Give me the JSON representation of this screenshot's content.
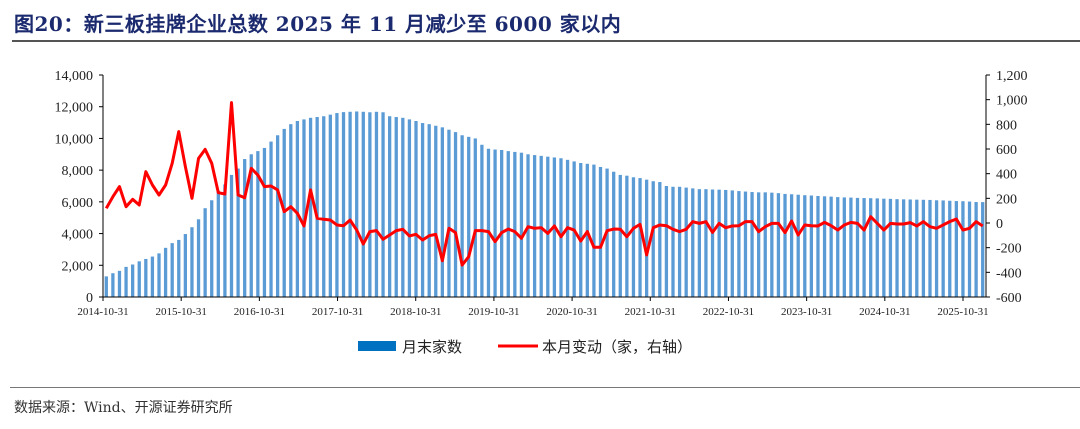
{
  "title": "图20：新三板挂牌企业总数 2025 年 11 月减少至 6000 家以内",
  "source": "数据来源：Wind、开源证券研究所",
  "chart_data": {
    "type": "bar+line",
    "title": "图20：新三板挂牌企业总数 2025 年 11 月减少至 6000 家以内",
    "start_month": "2014-10",
    "frequency": "monthly",
    "x_tick_labels": [
      "2014-10-31",
      "2015-10-31",
      "2016-10-31",
      "2017-10-31",
      "2018-10-31",
      "2019-10-31",
      "2020-10-31",
      "2021-10-31",
      "2022-10-31",
      "2023-10-31",
      "2024-10-31",
      "2025-10-31"
    ],
    "left_axis": {
      "ylim": [
        0,
        14000
      ],
      "ticks": [
        "0",
        "2,000",
        "4,000",
        "6,000",
        "8,000",
        "10,000",
        "12,000",
        "14,000"
      ]
    },
    "right_axis": {
      "ylim": [
        -600,
        1200
      ],
      "ticks": [
        "-600",
        "-400",
        "-200",
        "0",
        "200",
        "400",
        "600",
        "800",
        "1,000",
        "1,200"
      ]
    },
    "legend": {
      "placement": "bottom-center"
    },
    "colors": {
      "bar": "#5b9bd5",
      "legend_bar": "#0070c0",
      "line": "#ff0000"
    },
    "series": [
      {
        "name": "月末家数",
        "type": "bar",
        "axis": "left",
        "values": [
          1300,
          1500,
          1650,
          1900,
          2050,
          2250,
          2400,
          2550,
          2750,
          3100,
          3400,
          3600,
          3970,
          4400,
          4900,
          5600,
          6100,
          6700,
          7100,
          7700,
          8100,
          8700,
          9000,
          9200,
          9400,
          9800,
          10200,
          10600,
          10900,
          11100,
          11200,
          11300,
          11350,
          11400,
          11500,
          11600,
          11660,
          11680,
          11700,
          11680,
          11650,
          11680,
          11650,
          11400,
          11350,
          11300,
          11200,
          11100,
          10970,
          10900,
          10800,
          10700,
          10550,
          10400,
          10200,
          10100,
          10000,
          9600,
          9350,
          9300,
          9270,
          9200,
          9150,
          9100,
          9000,
          8950,
          8900,
          8850,
          8800,
          8750,
          8650,
          8550,
          8450,
          8400,
          8350,
          8200,
          8100,
          7900,
          7700,
          7650,
          7550,
          7500,
          7400,
          7300,
          7250,
          7000,
          6950,
          6950,
          6900,
          6850,
          6800,
          6800,
          6780,
          6770,
          6750,
          6720,
          6680,
          6650,
          6620,
          6600,
          6600,
          6580,
          6550,
          6500,
          6480,
          6450,
          6420,
          6400,
          6370,
          6350,
          6330,
          6300,
          6280,
          6270,
          6250,
          6240,
          6230,
          6220,
          6200,
          6190,
          6170,
          6160,
          6150,
          6140,
          6130,
          6120,
          6100,
          6090,
          6070,
          6050,
          6040,
          6020,
          5990,
          5985
        ]
      },
      {
        "name": "本月变动（家，右轴）",
        "type": "line",
        "axis": "right",
        "values": [
          119,
          213,
          295,
          132,
          192,
          146,
          416,
          308,
          227,
          308,
          484,
          741,
          457,
          200,
          524,
          597,
          484,
          246,
          235,
          976,
          227,
          205,
          443,
          389,
          295,
          300,
          268,
          92,
          132,
          79,
          -24,
          268,
          38,
          30,
          24,
          -16,
          -22,
          24,
          -57,
          -170,
          -70,
          -62,
          -132,
          -97,
          -62,
          -51,
          -105,
          -92,
          -138,
          -103,
          -92,
          -306,
          -43,
          -78,
          -341,
          -273,
          -62,
          -62,
          -70,
          -151,
          -78,
          -49,
          -70,
          -124,
          -30,
          -43,
          -38,
          -84,
          -24,
          -111,
          -38,
          -57,
          -146,
          -70,
          -197,
          -197,
          -62,
          -49,
          -51,
          -111,
          -43,
          -11,
          -259,
          -38,
          -16,
          -22,
          -51,
          -70,
          -51,
          11,
          -3,
          11,
          -76,
          -3,
          -38,
          -24,
          -22,
          11,
          11,
          -70,
          -30,
          -3,
          -3,
          -78,
          16,
          -97,
          -16,
          -22,
          -24,
          5,
          -22,
          -57,
          -16,
          5,
          -3,
          -57,
          51,
          -3,
          -57,
          -3,
          -8,
          -8,
          3,
          -24,
          11,
          -30,
          -43,
          -16,
          11,
          32,
          -57,
          -43,
          11,
          -24
        ]
      }
    ]
  }
}
